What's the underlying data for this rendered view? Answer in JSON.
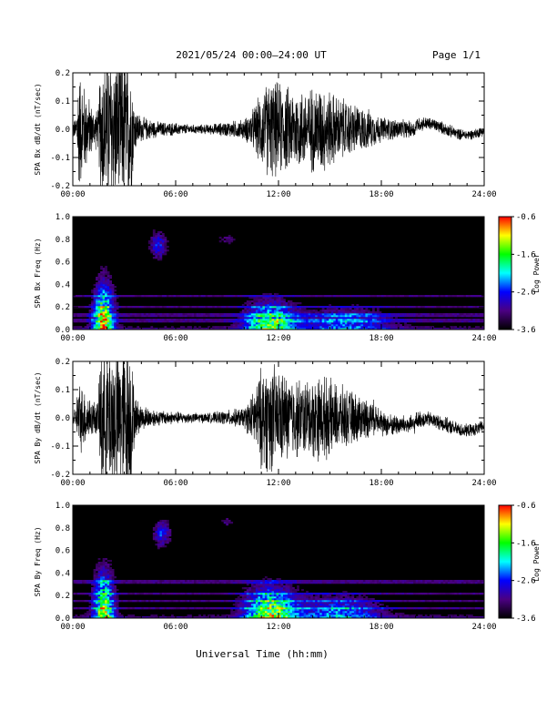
{
  "header": {
    "title": "2021/05/24  00:00–24:00 UT",
    "page": "Page 1/1"
  },
  "colors": {
    "background": "#ffffff",
    "trace": "#000000",
    "spectrogram_background": "#000000",
    "colormap": [
      "#000000",
      "#4b0082",
      "#0000ff",
      "#00ffff",
      "#00ff00",
      "#ffff00",
      "#ff0000"
    ]
  },
  "chart_data": [
    {
      "type": "line",
      "name": "bx-time-series",
      "ylabel": "SPA Bx dB/dt (nT/sec)",
      "ylim": [
        -0.2,
        0.2
      ],
      "yticks": [
        "0.2",
        "0.1",
        "0.0",
        "-0.1",
        "-0.2"
      ],
      "yticks_values": [
        0.2,
        0.1,
        0.0,
        -0.1,
        -0.2
      ],
      "xlim": [
        0,
        24
      ],
      "xticks": [
        "00:00",
        "06:00",
        "12:00",
        "18:00",
        "24:00"
      ],
      "envelope_hours": [
        0,
        0.2,
        0.3,
        1.2,
        1.5,
        1.6,
        3.4,
        3.6,
        4.0,
        5.0,
        6.0,
        7.0,
        8.0,
        9.0,
        10.0,
        10.5,
        11.0,
        11.5,
        12.5,
        13.5,
        14.5,
        15.5,
        16.5,
        17.5,
        18.0,
        19.0,
        20.0,
        21.0,
        22.0,
        23.0,
        24.0
      ],
      "envelope_amplitude": [
        0.04,
        0.04,
        0.25,
        0.08,
        0.08,
        0.3,
        0.3,
        0.09,
        0.05,
        0.03,
        0.025,
        0.018,
        0.02,
        0.03,
        0.04,
        0.08,
        0.15,
        0.2,
        0.17,
        0.16,
        0.18,
        0.13,
        0.1,
        0.07,
        0.05,
        0.04,
        0.03,
        0.025,
        0.025,
        0.02,
        0.02
      ]
    },
    {
      "type": "heatmap",
      "name": "bx-spectrogram",
      "ylabel": "SPA Bx Freq (Hz)",
      "ylim": [
        0.0,
        1.0
      ],
      "yticks": [
        "1.0",
        "0.8",
        "0.6",
        "0.4",
        "0.2",
        "0.0"
      ],
      "yticks_values": [
        1.0,
        0.8,
        0.6,
        0.4,
        0.2,
        0.0
      ],
      "xlim": [
        0,
        24
      ],
      "xticks": [
        "00:00",
        "06:00",
        "12:00",
        "18:00",
        "24:00"
      ],
      "colorbar": {
        "label": "Log Power",
        "ticks": [
          "-0.6",
          "-1.6",
          "-2.6",
          "-3.6"
        ],
        "ticks_values": [
          -0.6,
          -1.6,
          -2.6,
          -3.6
        ],
        "range": [
          -3.6,
          -0.6
        ]
      },
      "bursts": [
        {
          "t": 1.8,
          "f": 0.05,
          "amp": 0.9,
          "wt": 0.6,
          "wf": 0.35
        },
        {
          "t": 5.0,
          "f": 0.75,
          "amp": 0.4,
          "wt": 0.5,
          "wf": 0.12
        },
        {
          "t": 9.0,
          "f": 0.8,
          "amp": 0.2,
          "wt": 0.5,
          "wf": 0.05
        },
        {
          "t": 11.5,
          "f": 0.05,
          "amp": 0.7,
          "wt": 1.5,
          "wf": 0.2
        },
        {
          "t": 16.0,
          "f": 0.05,
          "amp": 0.4,
          "wt": 2.5,
          "wf": 0.15
        }
      ],
      "band_lines_hz": [
        0.3,
        0.2,
        0.13,
        0.08
      ]
    },
    {
      "type": "line",
      "name": "by-time-series",
      "ylabel": "SPA By dB/dt (nT/sec)",
      "ylim": [
        -0.2,
        0.2
      ],
      "yticks": [
        "0.2",
        "0.1",
        "0.0",
        "-0.1",
        "-0.2"
      ],
      "yticks_values": [
        0.2,
        0.1,
        0.0,
        -0.1,
        -0.2
      ],
      "xlim": [
        0,
        24
      ],
      "xticks": [
        "00:00",
        "06:00",
        "12:00",
        "18:00",
        "24:00"
      ],
      "envelope_hours": [
        0,
        0.2,
        0.3,
        1.2,
        1.5,
        1.6,
        3.4,
        3.6,
        4.0,
        5.0,
        6.0,
        7.0,
        8.0,
        9.0,
        10.0,
        10.5,
        11.0,
        11.5,
        12.5,
        13.5,
        14.5,
        15.5,
        16.5,
        17.5,
        18.0,
        19.0,
        20.0,
        21.0,
        22.0,
        23.0,
        24.0
      ],
      "envelope_amplitude": [
        0.04,
        0.04,
        0.15,
        0.07,
        0.07,
        0.3,
        0.3,
        0.09,
        0.05,
        0.03,
        0.025,
        0.02,
        0.02,
        0.03,
        0.04,
        0.1,
        0.2,
        0.22,
        0.17,
        0.15,
        0.17,
        0.13,
        0.1,
        0.07,
        0.05,
        0.04,
        0.035,
        0.03,
        0.03,
        0.025,
        0.025
      ]
    },
    {
      "type": "heatmap",
      "name": "by-spectrogram",
      "ylabel": "SPA By Freq (Hz)",
      "ylim": [
        0.0,
        1.0
      ],
      "yticks": [
        "1.0",
        "0.8",
        "0.6",
        "0.4",
        "0.2",
        "0.0"
      ],
      "yticks_values": [
        1.0,
        0.8,
        0.6,
        0.4,
        0.2,
        0.0
      ],
      "xlim": [
        0,
        24
      ],
      "xticks": [
        "00:00",
        "06:00",
        "12:00",
        "18:00",
        "24:00"
      ],
      "colorbar": {
        "label": "Log Power",
        "ticks": [
          "-0.6",
          "-1.6",
          "-2.6",
          "-3.6"
        ],
        "ticks_values": [
          -0.6,
          -1.6,
          -2.6,
          -3.6
        ],
        "range": [
          -3.6,
          -0.6
        ]
      },
      "bursts": [
        {
          "t": 1.8,
          "f": 0.05,
          "amp": 0.85,
          "wt": 0.6,
          "wf": 0.35
        },
        {
          "t": 5.2,
          "f": 0.75,
          "amp": 0.4,
          "wt": 0.5,
          "wf": 0.12
        },
        {
          "t": 9.0,
          "f": 0.85,
          "amp": 0.2,
          "wt": 0.4,
          "wf": 0.05
        },
        {
          "t": 11.5,
          "f": 0.05,
          "amp": 0.8,
          "wt": 1.5,
          "wf": 0.22
        },
        {
          "t": 15.5,
          "f": 0.05,
          "amp": 0.45,
          "wt": 2.5,
          "wf": 0.15
        }
      ],
      "band_lines_hz": [
        0.32,
        0.22,
        0.15,
        0.09
      ]
    }
  ],
  "xaxis_label": "Universal Time (hh:mm)"
}
